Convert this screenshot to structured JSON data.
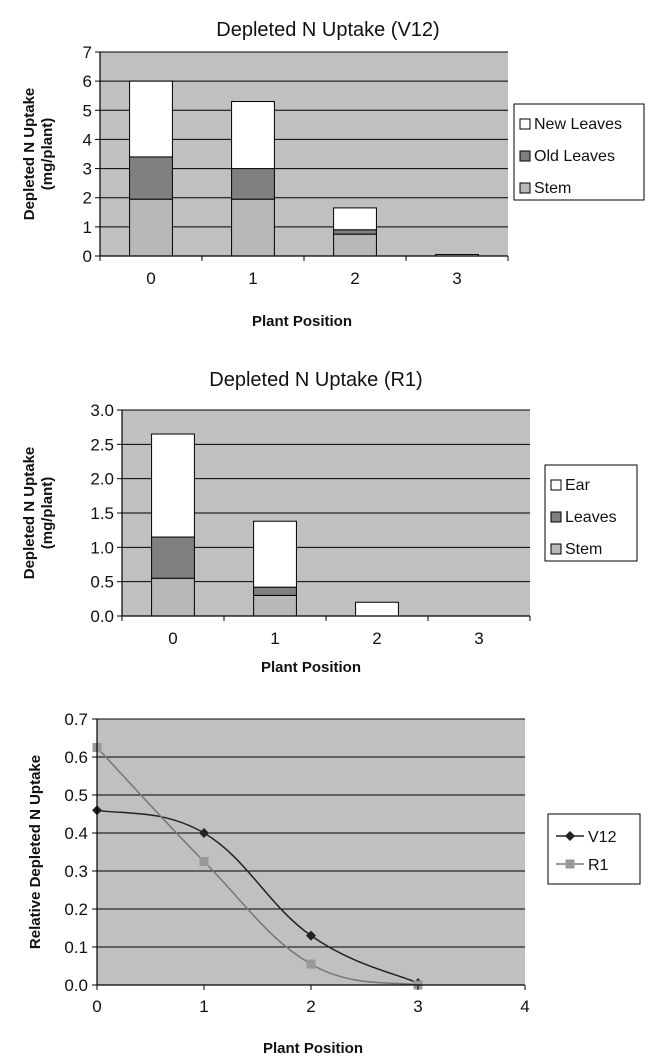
{
  "colors": {
    "plot_bg": "#c0c0c0",
    "grid": "#000000",
    "new_leaves": "#ffffff",
    "old_leaves": "#808080",
    "stem": "#b8b8b8",
    "v12_line": "#222222",
    "r1_line": "#777777",
    "r1_marker": "#999999"
  },
  "chart_data": [
    {
      "type": "bar",
      "stacked": true,
      "title": "Depleted N Uptake (V12)",
      "xlabel": "Plant Position",
      "ylabel_line1": "Depleted N Uptake",
      "ylabel_line2": "(mg/plant)",
      "ylim": [
        0,
        7
      ],
      "yticks": [
        "0",
        "1",
        "2",
        "3",
        "4",
        "5",
        "6",
        "7"
      ],
      "categories": [
        "0",
        "1",
        "2",
        "3"
      ],
      "series": [
        {
          "name": "Stem",
          "values": [
            1.95,
            1.95,
            0.75,
            0.0
          ]
        },
        {
          "name": "Old Leaves",
          "values": [
            1.45,
            1.05,
            0.15,
            0.0
          ]
        },
        {
          "name": "New Leaves",
          "values": [
            2.6,
            2.3,
            0.75,
            0.05
          ]
        }
      ],
      "legend_order": [
        "New Leaves",
        "Old Leaves",
        "Stem"
      ],
      "legend": "right",
      "grid": true
    },
    {
      "type": "bar",
      "stacked": true,
      "title": "Depleted N Uptake (R1)",
      "xlabel": "Plant Position",
      "ylabel_line1": "Depleted N Uptake",
      "ylabel_line2": "(mg/plant)",
      "ylim": [
        0,
        3
      ],
      "yticks": [
        "0.0",
        "0.5",
        "1.0",
        "1.5",
        "2.0",
        "2.5",
        "3.0"
      ],
      "categories": [
        "0",
        "1",
        "2",
        "3"
      ],
      "series": [
        {
          "name": "Stem",
          "values": [
            0.55,
            0.3,
            0.0,
            0.0
          ]
        },
        {
          "name": "Leaves",
          "values": [
            0.6,
            0.12,
            0.0,
            0.0
          ]
        },
        {
          "name": "Ear",
          "values": [
            1.5,
            0.96,
            0.2,
            0.0
          ]
        }
      ],
      "legend_order": [
        "Ear",
        "Leaves",
        "Stem"
      ],
      "legend": "right",
      "grid": true
    },
    {
      "type": "line",
      "smooth": true,
      "xlabel": "Plant Position",
      "ylabel": "Relative Depleted N Uptake",
      "xlim": [
        0,
        4
      ],
      "ylim": [
        0,
        0.7
      ],
      "xticks": [
        "0",
        "1",
        "2",
        "3",
        "4"
      ],
      "yticks": [
        "0.0",
        "0.1",
        "0.2",
        "0.3",
        "0.4",
        "0.5",
        "0.6",
        "0.7"
      ],
      "series": [
        {
          "name": "V12",
          "x": [
            0,
            1,
            2,
            3
          ],
          "y": [
            0.46,
            0.4,
            0.13,
            0.005
          ]
        },
        {
          "name": "R1",
          "x": [
            0,
            1,
            2,
            3
          ],
          "y": [
            0.625,
            0.325,
            0.055,
            0.0
          ]
        }
      ],
      "legend": "right",
      "grid": true
    }
  ]
}
